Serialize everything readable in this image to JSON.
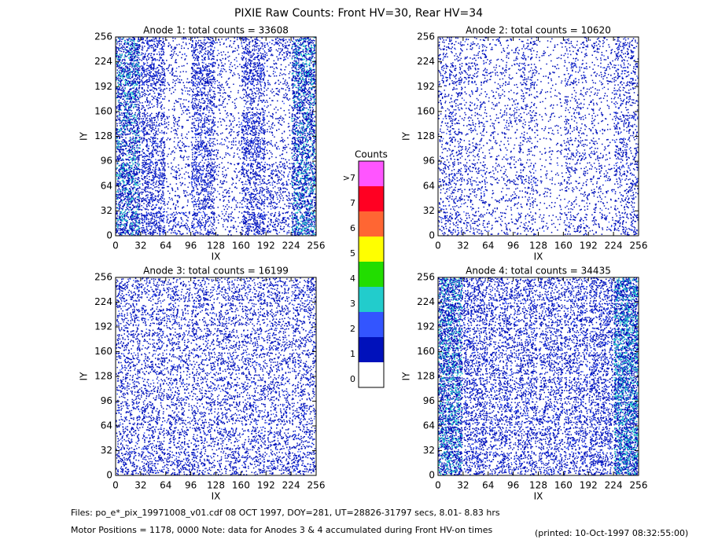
{
  "title": "PIXIE Raw Counts:  Front HV=30, Rear HV=34",
  "chart_data": [
    {
      "type": "heatmap",
      "title": "Anode 1: total counts = 33608",
      "xlabel": "IX",
      "ylabel": "IY",
      "xlim": [
        0,
        256
      ],
      "ylim": [
        0,
        256
      ],
      "xticks": [
        0,
        32,
        64,
        96,
        128,
        160,
        192,
        224,
        256
      ],
      "yticks": [
        0,
        32,
        64,
        96,
        128,
        160,
        192,
        224,
        256
      ],
      "values": [
        [
          0.5,
          0.3,
          0.1,
          0.3,
          0.1,
          0.3,
          0.2,
          0.5
        ],
        [
          0.6,
          0.4,
          0.1,
          0.4,
          0.1,
          0.4,
          0.1,
          0.6
        ],
        [
          0.5,
          0.2,
          0.1,
          0.3,
          0.1,
          0.2,
          0.1,
          0.5
        ],
        [
          0.5,
          0.3,
          0.1,
          0.3,
          0.1,
          0.4,
          0.1,
          0.5
        ],
        [
          0.5,
          0.3,
          0.1,
          0.3,
          0.1,
          0.4,
          0.1,
          0.5
        ],
        [
          0.6,
          0.4,
          0.1,
          0.4,
          0.1,
          0.3,
          0.2,
          0.6
        ],
        [
          0.5,
          0.3,
          0.1,
          0.3,
          0.1,
          0.3,
          0.2,
          0.5
        ],
        [
          0.6,
          0.4,
          0.2,
          0.3,
          0.1,
          0.4,
          0.2,
          0.6
        ]
      ]
    },
    {
      "type": "heatmap",
      "title": "Anode 2: total counts = 10620",
      "xlabel": "IX",
      "ylabel": "IY",
      "xlim": [
        0,
        256
      ],
      "ylim": [
        0,
        256
      ],
      "xticks": [
        0,
        32,
        64,
        96,
        128,
        160,
        192,
        224,
        256
      ],
      "yticks": [
        0,
        32,
        64,
        96,
        128,
        160,
        192,
        224,
        256
      ],
      "values": [
        [
          0.15,
          0.12,
          0.08,
          0.12,
          0.05,
          0.12,
          0.1,
          0.2
        ],
        [
          0.2,
          0.15,
          0.1,
          0.15,
          0.05,
          0.15,
          0.1,
          0.2
        ],
        [
          0.15,
          0.1,
          0.08,
          0.12,
          0.05,
          0.1,
          0.08,
          0.15
        ],
        [
          0.15,
          0.12,
          0.1,
          0.12,
          0.06,
          0.12,
          0.08,
          0.2
        ],
        [
          0.15,
          0.1,
          0.08,
          0.1,
          0.06,
          0.15,
          0.1,
          0.2
        ],
        [
          0.2,
          0.15,
          0.1,
          0.15,
          0.06,
          0.12,
          0.1,
          0.2
        ],
        [
          0.15,
          0.12,
          0.08,
          0.12,
          0.06,
          0.1,
          0.1,
          0.15
        ],
        [
          0.2,
          0.15,
          0.1,
          0.12,
          0.06,
          0.15,
          0.1,
          0.2
        ]
      ]
    },
    {
      "type": "heatmap",
      "title": "Anode 3: total counts = 16199",
      "xlabel": "IX",
      "ylabel": "IY",
      "xlim": [
        0,
        256
      ],
      "ylim": [
        0,
        256
      ],
      "xticks": [
        0,
        32,
        64,
        96,
        128,
        160,
        192,
        224,
        256
      ],
      "yticks": [
        0,
        32,
        64,
        96,
        128,
        160,
        192,
        224,
        256
      ],
      "values": [
        [
          0.25,
          0.2,
          0.2,
          0.2,
          0.2,
          0.2,
          0.2,
          0.25
        ],
        [
          0.2,
          0.2,
          0.18,
          0.2,
          0.2,
          0.18,
          0.2,
          0.2
        ],
        [
          0.2,
          0.18,
          0.18,
          0.2,
          0.2,
          0.18,
          0.2,
          0.2
        ],
        [
          0.2,
          0.2,
          0.18,
          0.18,
          0.2,
          0.2,
          0.18,
          0.2
        ],
        [
          0.2,
          0.18,
          0.2,
          0.18,
          0.2,
          0.2,
          0.2,
          0.2
        ],
        [
          0.2,
          0.2,
          0.18,
          0.2,
          0.2,
          0.2,
          0.2,
          0.2
        ],
        [
          0.2,
          0.2,
          0.2,
          0.2,
          0.2,
          0.2,
          0.2,
          0.2
        ],
        [
          0.25,
          0.25,
          0.25,
          0.22,
          0.2,
          0.2,
          0.22,
          0.25
        ]
      ]
    },
    {
      "type": "heatmap",
      "title": "Anode 4: total counts = 34435",
      "xlabel": "IX",
      "ylabel": "IY",
      "xlim": [
        0,
        256
      ],
      "ylim": [
        0,
        256
      ],
      "xticks": [
        0,
        32,
        64,
        96,
        128,
        160,
        192,
        224,
        256
      ],
      "yticks": [
        0,
        32,
        64,
        96,
        128,
        160,
        192,
        224,
        256
      ],
      "values": [
        [
          0.6,
          0.3,
          0.25,
          0.25,
          0.25,
          0.25,
          0.3,
          0.7
        ],
        [
          0.6,
          0.3,
          0.25,
          0.25,
          0.25,
          0.25,
          0.3,
          0.7
        ],
        [
          0.6,
          0.3,
          0.25,
          0.25,
          0.25,
          0.25,
          0.3,
          0.7
        ],
        [
          0.6,
          0.3,
          0.25,
          0.25,
          0.25,
          0.25,
          0.3,
          0.7
        ],
        [
          0.6,
          0.3,
          0.25,
          0.25,
          0.25,
          0.25,
          0.3,
          0.7
        ],
        [
          0.6,
          0.3,
          0.25,
          0.25,
          0.25,
          0.25,
          0.3,
          0.7
        ],
        [
          0.6,
          0.3,
          0.25,
          0.25,
          0.25,
          0.25,
          0.3,
          0.7
        ],
        [
          0.6,
          0.3,
          0.25,
          0.25,
          0.25,
          0.25,
          0.3,
          0.7
        ]
      ]
    }
  ],
  "colorbar": {
    "title": "Counts",
    "labels": [
      ">7",
      "7",
      "6",
      "5",
      "4",
      "3",
      "2",
      "1",
      "0"
    ],
    "colors": [
      "#ff55ff",
      "#ff0022",
      "#ff6633",
      "#ffff00",
      "#22dd00",
      "#22cccc",
      "#3355ff",
      "#0011bb",
      "#ffffff"
    ]
  },
  "footer": {
    "files": "Files: po_e*_pix_19971008_v01.cdf    08 OCT 1997, DOY=281, UT=28826-31797 secs,  8.01- 8.83 hrs",
    "motor": "Motor Positions = 1178, 0000   Note: data for Anodes 3 & 4 accumulated during Front HV-on times",
    "printed": "(printed: 10-Oct-1997 08:32:55:00)"
  }
}
